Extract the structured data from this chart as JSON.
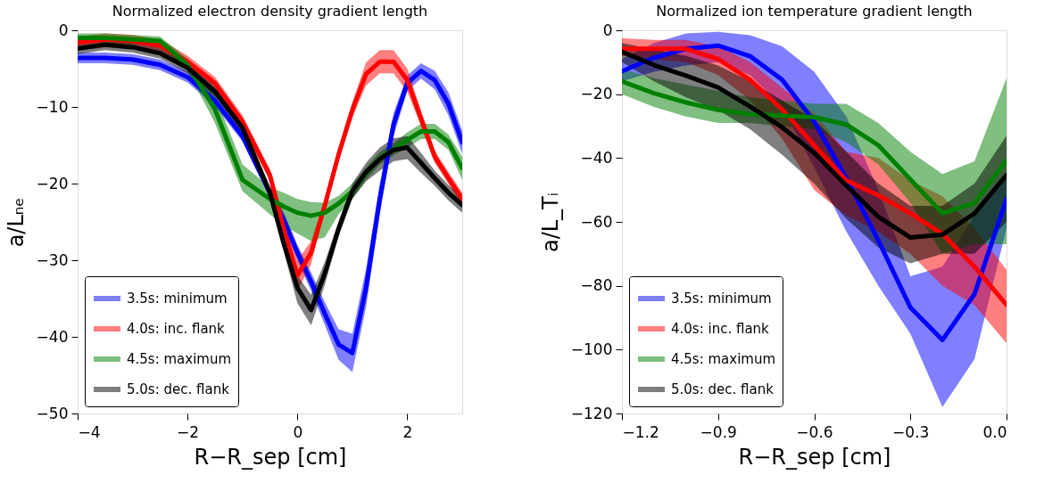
{
  "chart_data": [
    {
      "type": "line",
      "title": "Normalized electron density gradient length",
      "xlabel": "R−R_sep [cm]",
      "ylabel": "a/Lₙₑ",
      "legend": "bottom left",
      "grid": false,
      "line_style": "solid",
      "marker": "none",
      "xlim": [
        -4,
        3
      ],
      "ylim": [
        -50,
        0
      ],
      "xticks": [
        {
          "value": -4,
          "label": "−4"
        },
        {
          "value": -2,
          "label": "−2"
        },
        0,
        2
      ],
      "yticks": [
        {
          "value": -50,
          "label": "−50"
        },
        {
          "value": -40,
          "label": "−40"
        },
        {
          "value": -30,
          "label": "−30"
        },
        {
          "value": -20,
          "label": "−20"
        },
        {
          "value": -10,
          "label": "−10"
        },
        0
      ],
      "x": [
        -4,
        -3.5,
        -3,
        -2.5,
        -2,
        -1.5,
        -1,
        -0.5,
        -0.25,
        0,
        0.25,
        0.5,
        0.75,
        1,
        1.25,
        1.5,
        1.75,
        2,
        2.25,
        2.5,
        2.75,
        3
      ],
      "series": [
        {
          "name": "3.5s: minimum",
          "color": "#0000ff",
          "values": [
            -3.6,
            -3.6,
            -3.8,
            -4.5,
            -6.1,
            -9.2,
            -13.8,
            -21.2,
            -24.7,
            -29,
            -32.8,
            -37,
            -41,
            -42.1,
            -33.6,
            -22,
            -12.3,
            -6.9,
            -5.3,
            -6.5,
            -9.6,
            -14.6
          ],
          "upper": [
            -2.9,
            -2.9,
            -3.1,
            -3.8,
            -5.4,
            -8.5,
            -13.1,
            -20.5,
            -23.7,
            -28,
            -31.6,
            -35.5,
            -39,
            -39.6,
            -31.1,
            -20,
            -10.8,
            -5.9,
            -4.3,
            -5.3,
            -8.1,
            -13.1
          ],
          "lower": [
            -4.3,
            -4.3,
            -4.5,
            -5.2,
            -6.8,
            -9.9,
            -14.5,
            -21.9,
            -25.7,
            -30,
            -34,
            -38.5,
            -43,
            -44.6,
            -36.1,
            -24,
            -13.8,
            -7.9,
            -6.3,
            -7.7,
            -11.1,
            -16.1
          ]
        },
        {
          "name": "4.0s: inc. flank",
          "color": "#ff0000",
          "values": [
            -1.6,
            -1.2,
            -1.4,
            -2,
            -4.1,
            -6.9,
            -11.9,
            -18.9,
            -25.9,
            -32,
            -29,
            -22.8,
            -16.2,
            -10.4,
            -5.7,
            -4.1,
            -4.1,
            -6.5,
            -11.5,
            -16.5,
            -19.3,
            -22
          ],
          "upper": [
            -0.8,
            -0.4,
            -0.6,
            -1.2,
            -3.3,
            -6.1,
            -11.1,
            -18.1,
            -24.4,
            -30,
            -27.5,
            -22,
            -15.4,
            -9.4,
            -4.2,
            -2.6,
            -2.6,
            -5,
            -10.5,
            -15.7,
            -18.5,
            -21.2
          ],
          "lower": [
            -2.4,
            -2,
            -2.2,
            -2.8,
            -4.9,
            -7.7,
            -12.7,
            -19.7,
            -27.4,
            -34,
            -30.5,
            -23.6,
            -17,
            -11.4,
            -7.2,
            -5.6,
            -5.6,
            -8,
            -12.5,
            -17.3,
            -20.1,
            -22.8
          ]
        },
        {
          "name": "4.5s: maximum",
          "color": "#008000",
          "values": [
            -1,
            -1,
            -1.2,
            -1.4,
            -4.5,
            -10.3,
            -19.5,
            -22,
            -23,
            -23.8,
            -24.2,
            -23.8,
            -22.6,
            -21,
            -18.7,
            -16.7,
            -15.5,
            -14.3,
            -13.2,
            -13.2,
            -14.6,
            -18
          ],
          "upper": [
            -0.4,
            -0.4,
            -0.6,
            -0.8,
            -3.7,
            -8.5,
            -17.5,
            -20.5,
            -21.2,
            -22,
            -22.4,
            -22.5,
            -21.6,
            -20,
            -17.9,
            -15.9,
            -14.7,
            -13.3,
            -12.2,
            -12.2,
            -13.6,
            -16.5
          ],
          "lower": [
            -1.6,
            -1.6,
            -1.8,
            -2,
            -5.3,
            -12.1,
            -21,
            -24,
            -25.5,
            -26.5,
            -27.5,
            -27,
            -24,
            -22,
            -19.5,
            -17.5,
            -16.3,
            -15.3,
            -14.2,
            -14.2,
            -15.6,
            -19.5
          ]
        },
        {
          "name": "5.0s: dec. flank",
          "color": "#000000",
          "values": [
            -2.4,
            -1.9,
            -2.2,
            -3,
            -4.9,
            -8,
            -12.7,
            -21.2,
            -27.8,
            -33.6,
            -36.5,
            -31.7,
            -25.9,
            -21,
            -18.5,
            -16.8,
            -15.6,
            -15.3,
            -17.3,
            -19.3,
            -21.2,
            -22.8
          ],
          "upper": [
            -1.7,
            -1.2,
            -1.5,
            -2.3,
            -4.2,
            -7.3,
            -12,
            -20.5,
            -26.8,
            -32,
            -34.5,
            -30.2,
            -24.9,
            -20,
            -17.3,
            -15.3,
            -14.1,
            -13.8,
            -16,
            -18.3,
            -20.2,
            -21.8
          ],
          "lower": [
            -3.1,
            -2.6,
            -2.9,
            -3.7,
            -5.6,
            -8.7,
            -13.4,
            -21.9,
            -28.8,
            -35.6,
            -38.5,
            -33.2,
            -26.9,
            -22,
            -19.7,
            -18.3,
            -17.1,
            -16.8,
            -18.6,
            -20.3,
            -22.2,
            -23.8
          ]
        }
      ]
    },
    {
      "type": "line",
      "title": "Normalized ion temperature gradient length",
      "xlabel": "R−R_sep [cm]",
      "ylabel": "a/L_Tᵢ",
      "legend": "bottom left",
      "grid": false,
      "line_style": "solid",
      "marker": "none",
      "xlim": [
        -1.2,
        0
      ],
      "ylim": [
        -120,
        0
      ],
      "xticks": [
        {
          "value": -1.2,
          "label": "−1.2"
        },
        {
          "value": -0.9,
          "label": "−0.9"
        },
        {
          "value": -0.6,
          "label": "−0.6"
        },
        {
          "value": -0.3,
          "label": "−0.3"
        },
        {
          "value": 0,
          "label": "0.0"
        }
      ],
      "yticks": [
        {
          "value": -120,
          "label": "−120"
        },
        {
          "value": -100,
          "label": "−100"
        },
        {
          "value": -80,
          "label": "−80"
        },
        {
          "value": -60,
          "label": "−60"
        },
        {
          "value": -40,
          "label": "−40"
        },
        {
          "value": -20,
          "label": "−20"
        },
        0
      ],
      "x": [
        -1.2,
        -1.1,
        -1.0,
        -0.9,
        -0.8,
        -0.7,
        -0.6,
        -0.5,
        -0.4,
        -0.3,
        -0.2,
        -0.1,
        0
      ],
      "series": [
        {
          "name": "3.5s: minimum",
          "color": "#0000ff",
          "values": [
            -12.8,
            -8.6,
            -5.8,
            -4.8,
            -8.1,
            -15.5,
            -28.6,
            -46.3,
            -65.8,
            -86.8,
            -97,
            -82.6,
            -52.8
          ],
          "upper": [
            -9,
            -4,
            -1,
            -0.5,
            -1.5,
            -5,
            -13,
            -27,
            -50,
            -77,
            -74,
            -58,
            -45
          ],
          "lower": [
            -16,
            -13,
            -11,
            -10,
            -14,
            -24,
            -43,
            -63,
            -80,
            -95,
            -118,
            -103,
            -62
          ]
        },
        {
          "name": "4.0s: inc. flank",
          "color": "#ff0000",
          "values": [
            -5.8,
            -5.8,
            -5.8,
            -9,
            -15.5,
            -24.8,
            -36,
            -47,
            -51.7,
            -57.3,
            -63.8,
            -74,
            -86
          ],
          "upper": [
            -2.5,
            -3,
            -3,
            -5,
            -10,
            -18,
            -26,
            -38,
            -40,
            -47,
            -52,
            -62,
            -75
          ],
          "lower": [
            -8,
            -9,
            -10,
            -14,
            -22,
            -34,
            -50,
            -58,
            -63,
            -70,
            -80,
            -86,
            -98
          ]
        },
        {
          "name": "4.5s: maximum",
          "color": "#008000",
          "values": [
            -16,
            -19.7,
            -22.6,
            -24.9,
            -26.3,
            -26.7,
            -27.2,
            -29.5,
            -36,
            -46.7,
            -57.3,
            -54.1,
            -40.7
          ],
          "upper": [
            -12,
            -15,
            -17,
            -19,
            -21,
            -22,
            -23,
            -23,
            -29,
            -38,
            -45,
            -41,
            -15
          ],
          "lower": [
            -20,
            -24,
            -27,
            -29,
            -29,
            -30,
            -31,
            -35,
            -42,
            -54,
            -70,
            -67,
            -67
          ]
        },
        {
          "name": "5.0s: dec. flank",
          "color": "#000000",
          "values": [
            -6.7,
            -10.9,
            -14.2,
            -17.9,
            -23.9,
            -30.4,
            -38.4,
            -48.6,
            -58.4,
            -64.9,
            -64,
            -57.4,
            -45.3
          ],
          "upper": [
            -4,
            -6,
            -8,
            -11,
            -16,
            -22,
            -28,
            -38,
            -48,
            -55,
            -55,
            -48,
            -33
          ],
          "lower": [
            -10,
            -16,
            -21,
            -25,
            -31,
            -39,
            -48,
            -59,
            -68,
            -73,
            -70,
            -70,
            -60
          ]
        }
      ]
    }
  ]
}
